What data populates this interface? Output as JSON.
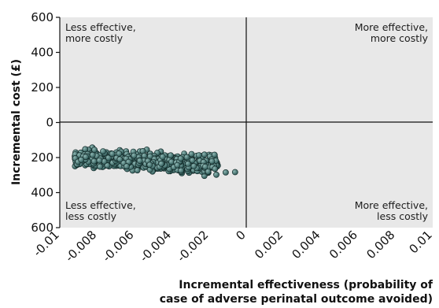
{
  "chart_data": {
    "type": "scatter",
    "title": "",
    "xlabel_lines": [
      "Incremental effectiveness (probability of",
      "case of adverse perinatal outcome avoided)"
    ],
    "ylabel": "Incremental cost (£)",
    "xlim": [
      -0.01,
      0.01
    ],
    "ylim": [
      -600,
      600
    ],
    "x_ticks": [
      -0.01,
      -0.008,
      -0.006,
      -0.004,
      -0.002,
      0,
      0.002,
      0.004,
      0.006,
      0.008,
      0.01
    ],
    "x_tick_labels": [
      "-0.01",
      "-0.008",
      "-0.006",
      "-0.004",
      "-0.002",
      "0",
      "0.002",
      "0.004",
      "0.006",
      "0.008",
      "0.01"
    ],
    "y_ticks": [
      600,
      400,
      200,
      0,
      -200,
      -400,
      -600
    ],
    "y_tick_labels": [
      "600",
      "400",
      "200",
      "0",
      "200",
      "400",
      "600"
    ],
    "quadrant_labels": {
      "top_left": [
        "Less effective,",
        "more costly"
      ],
      "top_right": [
        "More effective,",
        "more costly"
      ],
      "bottom_left": [
        "Less effective,",
        "less costly"
      ],
      "bottom_right": [
        "More effective,",
        "less costly"
      ]
    },
    "grid": false,
    "background_color": "#e8e8e8",
    "point_color": "#2f5a58",
    "point_highlight_color": "#8fb8b4",
    "cloud": {
      "x_range": [
        -0.0092,
        -0.0015
      ],
      "y_range": [
        -335,
        -130
      ],
      "point_count": 700,
      "outliers": [
        {
          "x": -0.0011,
          "y": -285
        },
        {
          "x": -0.0006,
          "y": -283
        }
      ]
    }
  }
}
